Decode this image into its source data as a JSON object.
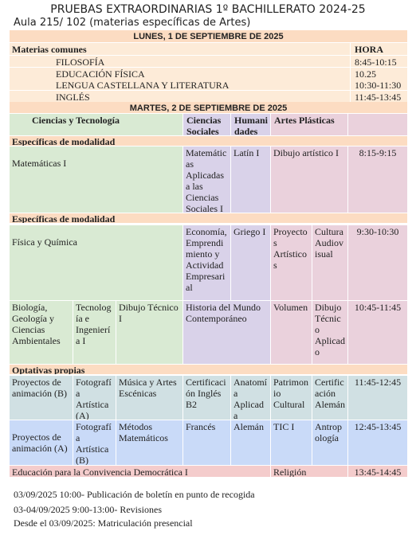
{
  "header": {
    "title": "PRUEBAS EXTRAORDINARIAS 1º BACHILLERATO 2024-25",
    "subtitle": "Aula 215/ 102 (materias específicas de Artes)"
  },
  "monday": {
    "heading": "LUNES, 1 DE SEPTIEMBRE DE 2025",
    "label": "Materias comunes",
    "time_heading": "HORA",
    "rows": [
      {
        "subject": "FILOSOFÍA",
        "time": "8:45-10:15"
      },
      {
        "subject": "EDUCACIÓN FÍSICA",
        "time": "10.25"
      },
      {
        "subject": "LENGUA CASTELLANA Y LITERATURA",
        "time": "10:30-11:30"
      },
      {
        "subject": "INGLÉS",
        "time": "11:45-13:45"
      }
    ]
  },
  "tuesday": {
    "heading": "MARTES, 2 DE SEPTIEMBRE DE 2025",
    "columns": [
      "Ciencias y Tecnología",
      "Ciencias Sociales",
      "Humanidades",
      "Artes Plásticas"
    ],
    "blocks": [
      {
        "label": "Específicas de modalidad",
        "rows": [
          {
            "cells": [
              "Matemáticas I",
              "Matemáticas Aplicadas a las Ciencias Sociales I",
              "Latín I",
              "Dibujo artístico I"
            ],
            "time": "8:15-9:15"
          }
        ]
      },
      {
        "label": "Específicas de modalidad",
        "rows": [
          {
            "cells": [
              "Física y Química",
              "Economía, Emprendimiento y Actividad Empresarial",
              "Griego I",
              "Proyectos Artísticos",
              "Cultura Audiovisual"
            ],
            "time": "9:30-10:30"
          },
          {
            "cells": [
              "Biología, Geología y Ciencias Ambientales",
              "Tecnología e Ingeniería I",
              "Dibujo Técnico I",
              "Historia del Mundo Contemporáneo",
              "Volumen",
              "Dibujo Técnico Aplicado"
            ],
            "time": "10:45-11:45"
          }
        ]
      },
      {
        "label": "Optativas propias",
        "rows": [
          {
            "cells": [
              "Proyectos de animación (B)",
              "Fotografía Artística (A)",
              "Música y Artes Escénicas",
              "Certificación Inglés B2",
              "Anatomía Aplicada",
              "Patrimonio Cultural",
              "Certificación Alemán"
            ],
            "time": "11:45-12:45"
          },
          {
            "cells": [
              "Proyectos de animación (A)",
              "Fotografía Artística (B)",
              "Métodos Matemáticos",
              "Francés",
              "Alemán",
              "TIC I",
              "Antropología"
            ],
            "time": "12:45-13:45"
          },
          {
            "cells": [
              "Educación para la Convivencia Democrática I",
              "Religión"
            ],
            "time": "13:45-14:45"
          }
        ]
      }
    ]
  },
  "notes": [
    "03/09/2025 10:00- Publicación de boletín en punto de recogida",
    "03-04/09/2025 9:00-13:00- Revisiones",
    "Desde el 03/09/2025: Matriculación presencial"
  ]
}
